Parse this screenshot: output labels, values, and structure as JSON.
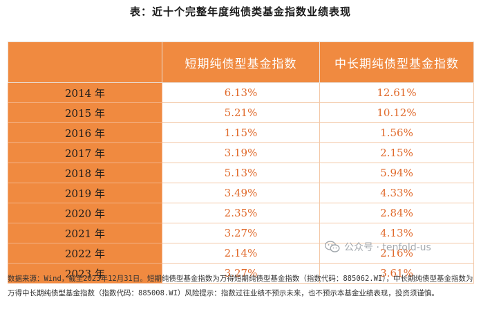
{
  "title": "表：近十个完整年度纯债类基金指数业绩表现",
  "table": {
    "headers": [
      "",
      "短期纯债型基金指数",
      "中长期纯债型基金指数"
    ],
    "rows": [
      {
        "year": "2014 年",
        "short": "6.13%",
        "long": "12.61%"
      },
      {
        "year": "2015 年",
        "short": "5.21%",
        "long": "10.12%"
      },
      {
        "year": "2016 年",
        "short": "1.15%",
        "long": "1.56%"
      },
      {
        "year": "2017 年",
        "short": "3.19%",
        "long": "2.15%"
      },
      {
        "year": "2018 年",
        "short": "5.13%",
        "long": "5.94%"
      },
      {
        "year": "2019 年",
        "short": "3.49%",
        "long": "4.33%"
      },
      {
        "year": "2020 年",
        "short": "2.35%",
        "long": "2.84%"
      },
      {
        "year": "2021 年",
        "short": "3.27%",
        "long": "4.13%"
      },
      {
        "year": "2022 年",
        "short": "2.14%",
        "long": "2.16%"
      },
      {
        "year": "2023 年",
        "short": "3.27%",
        "long": "3.61%"
      }
    ]
  },
  "watermark": {
    "text": "公众号 · tenfold-us",
    "icon": "wechat-icon"
  },
  "note": "数据来源：Wind，截至2023年12月31日。短期纯债型基金指数为万得短期纯债型基金指数（指数代码：885062.WI），中长期纯债型基金指数为万得中长期纯债型基金指数（指数代码：885008.WI）风险提示：指数过往业绩不预示未来，也不预示本基金业绩表现，投资须谨慎。",
  "colors": {
    "header_bg": "#f08a40",
    "value_text": "#e0692a"
  }
}
